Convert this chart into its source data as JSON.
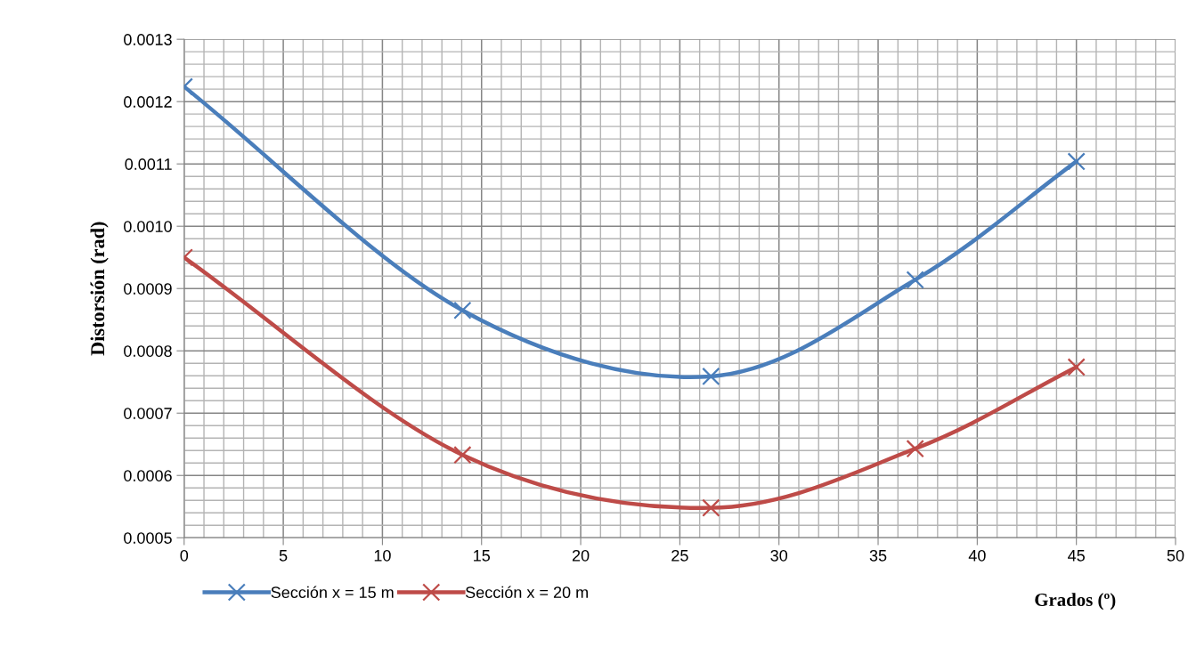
{
  "chart_data": {
    "type": "line",
    "xlabel": "Grados (º)",
    "ylabel": "Distorsión (rad)",
    "x": [
      0,
      14.04,
      26.57,
      36.87,
      45
    ],
    "series": [
      {
        "name": "Sección x = 15 m",
        "color": "#4a7ebb",
        "values": [
          0.001224,
          0.000865,
          0.000759,
          0.000914,
          0.001104
        ]
      },
      {
        "name": "Sección x = 20 m",
        "color": "#be4b48",
        "values": [
          0.00095,
          0.000633,
          0.000548,
          0.000643,
          0.000774
        ]
      }
    ],
    "xlim": [
      0,
      50
    ],
    "xticks": [
      0,
      5,
      10,
      15,
      20,
      25,
      30,
      35,
      40,
      45,
      50
    ],
    "ylim": [
      0.0005,
      0.0013
    ],
    "yticks": [
      {
        "value": 0.0005,
        "label": "0.0005"
      },
      {
        "value": 0.0006,
        "label": "0.0006"
      },
      {
        "value": 0.0007,
        "label": "0.0007"
      },
      {
        "value": 0.0008,
        "label": "0.0008"
      },
      {
        "value": 0.0009,
        "label": "0.0009"
      },
      {
        "value": 0.001,
        "label": "0.0010"
      },
      {
        "value": 0.0011,
        "label": "0.0011"
      },
      {
        "value": 0.0012,
        "label": "0.0012"
      },
      {
        "value": 0.0013,
        "label": "0.0013"
      }
    ],
    "grid": true,
    "legend": "bottom left",
    "marker": "cross",
    "line_style": "solid"
  }
}
